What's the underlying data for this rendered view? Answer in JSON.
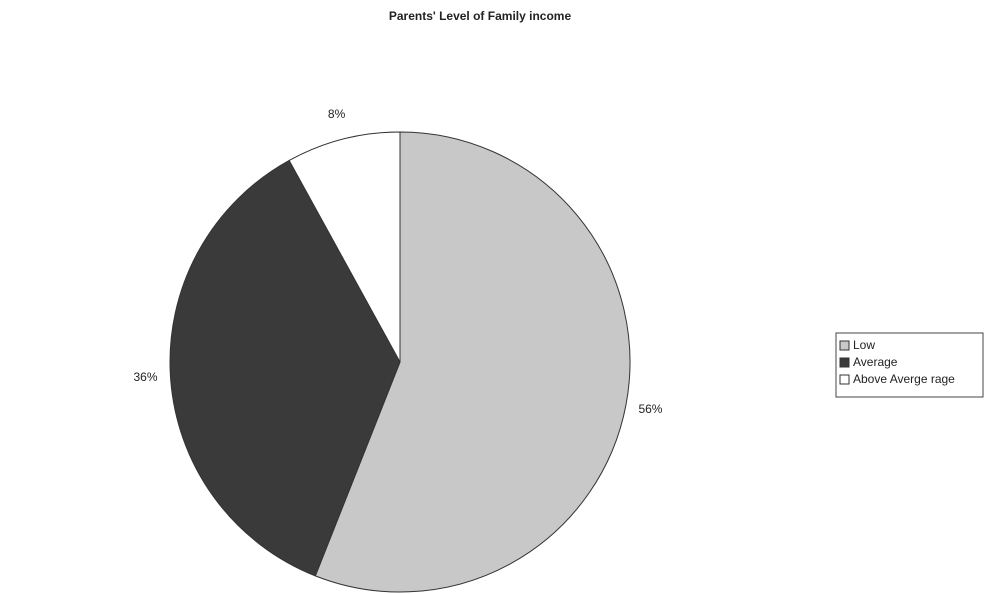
{
  "chart_data": {
    "type": "pie",
    "title": "Parents' Level of Family income",
    "categories": [
      "Low",
      "Average",
      "Above Averge rage"
    ],
    "values": [
      56,
      36,
      8
    ],
    "value_labels": [
      "56%",
      "36%",
      "8%"
    ],
    "colors": [
      "#c8c8c8",
      "#3a3a3a",
      "#ffffff"
    ],
    "legend": "right"
  }
}
